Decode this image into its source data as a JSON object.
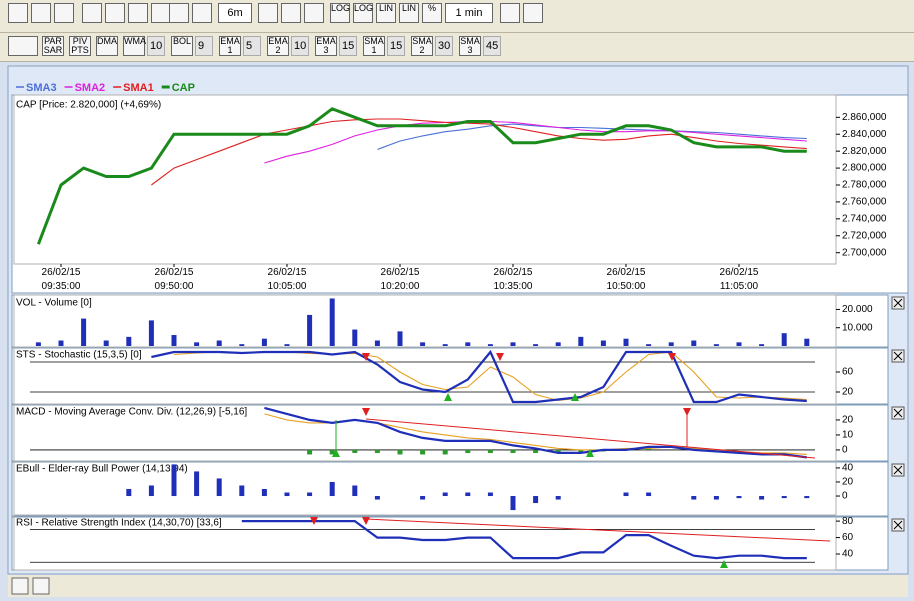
{
  "toolbar": {
    "period": "6m",
    "interval": "1 min",
    "scales": [
      "LOG",
      "LOG",
      "LIN",
      "LIN",
      "%"
    ],
    "indicators": [
      {
        "label": "PAR SAR"
      },
      {
        "label": "PIV PTS"
      },
      {
        "label": "DMA"
      },
      {
        "label": "WMA",
        "param": "10"
      },
      {
        "label": "BOL",
        "param": "9"
      },
      {
        "label": "EMA 1",
        "param": "5"
      },
      {
        "label": "EMA 2",
        "param": "10"
      },
      {
        "label": "EMA 3",
        "param": "15"
      },
      {
        "label": "SMA 1",
        "param": "15"
      },
      {
        "label": "SMA 2",
        "param": "30"
      },
      {
        "label": "SMA 3",
        "param": "45"
      }
    ]
  },
  "chart_data": [
    {
      "type": "line",
      "title": "CAP [Price: 2.820,000] (+4,69%)",
      "categories": [
        null,
        "26/02/15 09:35:00",
        null,
        null,
        null,
        null,
        "26/02/15 09:50:00",
        null,
        null,
        null,
        null,
        "26/02/15 10:05:00",
        null,
        null,
        null,
        null,
        "26/02/15 10:20:00",
        null,
        null,
        null,
        null,
        "26/02/15 10:35:00",
        null,
        null,
        null,
        null,
        "26/02/15 10:50:00",
        null,
        null,
        null,
        null,
        "26/02/15 11:05:00",
        null,
        null,
        null
      ],
      "ylim": [
        2.689,
        2.884
      ],
      "yticks": [
        {
          "value": 2.7,
          "label": "2.700,000"
        },
        {
          "value": 2.72,
          "label": "2.720,000"
        },
        {
          "value": 2.74,
          "label": "2.740,000"
        },
        {
          "value": 2.76,
          "label": "2.760,000"
        },
        {
          "value": 2.78,
          "label": "2.780,000"
        },
        {
          "value": 2.8,
          "label": "2.800,000"
        },
        {
          "value": 2.82,
          "label": "2.820,000"
        },
        {
          "value": 2.84,
          "label": "2.840,000"
        },
        {
          "value": 2.86,
          "label": "2.860,000"
        }
      ],
      "series": [
        {
          "name": "SMA3",
          "color": "#4a6fd8",
          "values": [
            null,
            null,
            null,
            null,
            null,
            null,
            null,
            null,
            null,
            null,
            null,
            null,
            null,
            null,
            null,
            2.822,
            2.832,
            2.838,
            2.843,
            2.846,
            2.85,
            2.852,
            2.85,
            2.848,
            2.848,
            2.847,
            2.846,
            2.845,
            2.844,
            2.843,
            2.842,
            2.84,
            2.838,
            2.836,
            2.835
          ]
        },
        {
          "name": "SMA2",
          "color": "#e020e0",
          "values": [
            null,
            null,
            null,
            null,
            null,
            null,
            null,
            null,
            null,
            null,
            2.806,
            2.814,
            2.82,
            2.828,
            2.838,
            2.845,
            2.85,
            2.853,
            2.854,
            2.855,
            2.855,
            2.854,
            2.851,
            2.848,
            2.845,
            2.843,
            2.843,
            2.844,
            2.844,
            2.842,
            2.84,
            2.838,
            2.836,
            2.834,
            2.832
          ]
        },
        {
          "name": "SMA1",
          "color": "#e02020",
          "values": [
            null,
            null,
            null,
            null,
            null,
            2.78,
            2.8,
            2.81,
            2.82,
            2.83,
            2.84,
            2.845,
            2.85,
            2.855,
            2.857,
            2.858,
            2.858,
            2.856,
            2.854,
            2.853,
            2.852,
            2.848,
            2.843,
            2.838,
            2.835,
            2.833,
            2.834,
            2.838,
            2.84,
            2.836,
            2.832,
            2.829,
            2.827,
            2.825,
            2.823
          ]
        },
        {
          "name": "CAP",
          "color": "#1a8a1a",
          "values": [
            2.71,
            2.78,
            2.8,
            2.79,
            2.79,
            2.8,
            2.84,
            2.84,
            2.84,
            2.84,
            2.84,
            2.84,
            2.85,
            2.87,
            2.86,
            2.85,
            2.85,
            2.85,
            2.85,
            2.855,
            2.855,
            2.83,
            2.83,
            2.835,
            2.84,
            2.84,
            2.85,
            2.85,
            2.845,
            2.83,
            2.825,
            2.825,
            2.825,
            2.82,
            2.82
          ]
        }
      ]
    },
    {
      "type": "bar",
      "title": "VOL - Volume [0]",
      "ylim": [
        0,
        26800
      ],
      "yticks": [
        {
          "value": 10000,
          "label": "10.000"
        },
        {
          "value": 20000,
          "label": "20.000"
        }
      ],
      "series": [
        {
          "color": "#1f2fb8",
          "values": [
            2000,
            3000,
            15000,
            3000,
            5000,
            14000,
            6000,
            2000,
            3000,
            1000,
            4000,
            1000,
            17000,
            26000,
            9000,
            3000,
            8000,
            2000,
            1000,
            2000,
            1000,
            2000,
            1000,
            2000,
            5000,
            3000,
            4000,
            1000,
            2000,
            3000,
            1000,
            2000,
            1000,
            7000,
            4000
          ]
        }
      ]
    },
    {
      "type": "line",
      "title": "STS - Stochastic (15,3,5) [0]",
      "ylim": [
        -2,
        106
      ],
      "yticks": [
        20,
        60
      ],
      "levels": [
        80,
        20
      ],
      "series": [
        {
          "color": "#e8a020",
          "values": [
            null,
            null,
            null,
            null,
            null,
            null,
            95,
            98,
            100,
            99,
            99,
            100,
            97,
            96,
            97,
            90,
            60,
            35,
            25,
            30,
            70,
            50,
            15,
            3,
            8,
            20,
            60,
            95,
            100,
            60,
            10,
            8,
            10,
            8,
            5
          ]
        },
        {
          "color": "#1f2fb8",
          "values": [
            null,
            null,
            null,
            null,
            null,
            90,
            100,
            100,
            100,
            98,
            100,
            100,
            100,
            95,
            100,
            75,
            40,
            25,
            20,
            45,
            100,
            0,
            0,
            5,
            10,
            30,
            100,
            100,
            100,
            0,
            0,
            15,
            10,
            5,
            2
          ]
        }
      ]
    },
    {
      "type": "line",
      "title": "MACD - Moving Average Conv. Div. (12,26,9) [-5,16]",
      "ylim": [
        -6.7,
        29.3
      ],
      "yticks": [
        0,
        10,
        20
      ],
      "levels": [
        0
      ],
      "series": [
        {
          "kind": "bar",
          "color": "#2a9a2a",
          "values": [
            null,
            null,
            null,
            null,
            null,
            null,
            null,
            null,
            null,
            null,
            null,
            null,
            -3,
            -3,
            -2,
            -2,
            -3,
            -3,
            -3,
            -2,
            -2,
            -2,
            -2,
            -2,
            -2,
            -1,
            1,
            1,
            0,
            null,
            null,
            null,
            null,
            null,
            null
          ]
        },
        {
          "color": "#e8a020",
          "values": [
            null,
            null,
            null,
            null,
            null,
            null,
            null,
            null,
            null,
            null,
            24,
            20,
            18,
            18,
            20,
            18,
            15,
            12,
            10,
            8,
            7,
            5,
            3,
            1,
            0,
            0,
            1,
            1,
            2,
            1,
            0,
            -1,
            -2,
            -2,
            -3
          ]
        },
        {
          "color": "#1f2fb8",
          "values": [
            null,
            null,
            null,
            null,
            null,
            null,
            null,
            null,
            null,
            null,
            28,
            24,
            20,
            18,
            20,
            18,
            12,
            8,
            6,
            6,
            6,
            3,
            1,
            -2,
            -2,
            0,
            0,
            2,
            2,
            0,
            -1,
            -2,
            -3,
            -3,
            -5
          ]
        }
      ]
    },
    {
      "type": "bar",
      "title": "EBull - Elder-ray Bull Power (14,13,94)",
      "ylim": [
        -27,
        47
      ],
      "yticks": [
        0,
        20,
        40
      ],
      "series": [
        {
          "color": "#1f2fb8",
          "values": [
            null,
            null,
            null,
            null,
            10,
            15,
            45,
            35,
            25,
            15,
            10,
            5,
            5,
            20,
            15,
            -5,
            0,
            -5,
            5,
            5,
            5,
            -20,
            -10,
            -5,
            0,
            0,
            5,
            5,
            0,
            -5,
            -5,
            -3,
            -5,
            -3,
            -3
          ]
        }
      ]
    },
    {
      "type": "line",
      "title": "RSI - Relative Strength Index (14,30,70) [33,6]",
      "ylim": [
        23,
        85
      ],
      "yticks": [
        40,
        60,
        80
      ],
      "levels": [
        70,
        30
      ],
      "series": [
        {
          "color": "#1f2fb8",
          "values": [
            null,
            null,
            null,
            null,
            null,
            null,
            null,
            null,
            null,
            80,
            80,
            80,
            80,
            80,
            80,
            60,
            60,
            57,
            57,
            60,
            60,
            35,
            35,
            35,
            42,
            42,
            63,
            63,
            50,
            38,
            35,
            38,
            38,
            35,
            35
          ]
        }
      ]
    }
  ]
}
